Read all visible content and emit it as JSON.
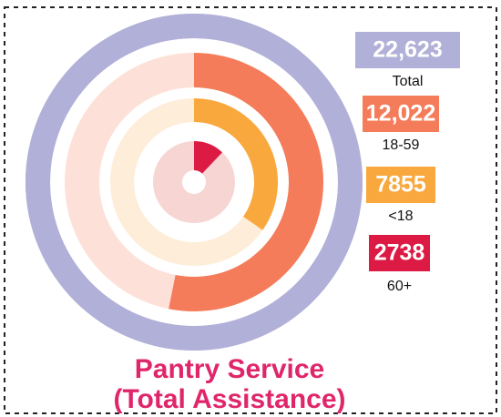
{
  "chart_data": {
    "type": "radial_bar",
    "title": [
      "Pantry Service",
      "(Total Assistance)"
    ],
    "categories": [
      "Total",
      "18-59",
      "<18",
      "60+"
    ],
    "values": [
      22623,
      12022,
      7855,
      2738
    ],
    "value_labels": [
      "22,623",
      "12,022",
      "7855",
      "2738"
    ],
    "colors": [
      "#b1b0d8",
      "#f47c5a",
      "#f9a83d",
      "#dc1a44"
    ],
    "track_colors": [
      "#b1b0d8",
      "#fde1d8",
      "#fdedd9",
      "#f6d5d2"
    ],
    "title_color": "#e0266a"
  }
}
